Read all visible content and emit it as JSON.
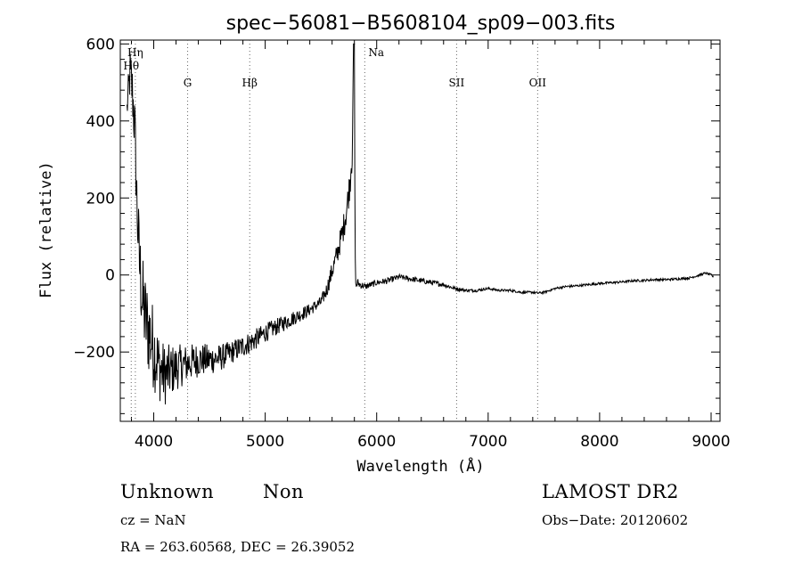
{
  "chart_data": {
    "type": "line",
    "title": "spec−56081−B5608104_sp09−003.fits",
    "xlabel": "Wavelength (Å)",
    "ylabel": "Flux (relative)",
    "xlim": [
      3700,
      9080
    ],
    "ylim": [
      -380,
      610
    ],
    "x_ticks": [
      4000,
      5000,
      6000,
      7000,
      8000,
      9000
    ],
    "x_tick_labels": [
      "4000",
      "5000",
      "6000",
      "7000",
      "8000",
      "9000"
    ],
    "y_ticks": [
      600,
      400,
      200,
      0,
      -200
    ],
    "y_tick_labels": [
      "600",
      "400",
      "200",
      "0",
      "−200"
    ],
    "grid": false,
    "series": [
      {
        "color": "#000000",
        "x": [
          3700,
          3760,
          3790,
          3810,
          3830,
          3850,
          3870,
          3900,
          3930,
          3960,
          4000,
          4050,
          4100,
          4150,
          4200,
          4300,
          4400,
          4500,
          4600,
          4700,
          4800,
          4900,
          5000,
          5100,
          5200,
          5300,
          5400,
          5500,
          5550,
          5600,
          5650,
          5700,
          5730,
          5760,
          5780,
          5795,
          5810,
          5830,
          5850,
          5900,
          6000,
          6100,
          6200,
          6300,
          6400,
          6500,
          6600,
          6700,
          6800,
          6900,
          7000,
          7100,
          7200,
          7300,
          7400,
          7450,
          7500,
          7600,
          7700,
          7800,
          7900,
          8000,
          8100,
          8200,
          8300,
          8400,
          8500,
          8600,
          8700,
          8800,
          8900,
          8950,
          9000,
          9020
        ],
        "y": [
          null,
          430,
          530,
          470,
          380,
          180,
          40,
          -70,
          -120,
          -150,
          -190,
          -240,
          -260,
          -250,
          -240,
          -230,
          -220,
          -220,
          -215,
          -200,
          -185,
          -170,
          -150,
          -135,
          -120,
          -105,
          -90,
          -70,
          -40,
          10,
          60,
          120,
          170,
          240,
          330,
          600,
          -30,
          -20,
          -25,
          -30,
          -20,
          -15,
          -5,
          -10,
          -15,
          -20,
          -25,
          -35,
          -40,
          -40,
          -35,
          -40,
          -40,
          -45,
          -45,
          -47,
          -45,
          -35,
          -30,
          -28,
          -25,
          -22,
          -20,
          -18,
          -15,
          -14,
          -12,
          -12,
          -10,
          -8,
          0,
          5,
          0,
          -5
        ],
        "noise": [
          0,
          40,
          70,
          80,
          90,
          100,
          110,
          120,
          120,
          120,
          110,
          90,
          80,
          70,
          60,
          50,
          45,
          40,
          35,
          30,
          30,
          28,
          25,
          22,
          20,
          18,
          16,
          15,
          20,
          25,
          30,
          35,
          40,
          40,
          60,
          0,
          15,
          12,
          10,
          8,
          8,
          8,
          7,
          7,
          7,
          7,
          6,
          5,
          4,
          4,
          3,
          3,
          3,
          3,
          3,
          3,
          3,
          3,
          3,
          3,
          3,
          3,
          3,
          3,
          3,
          3,
          3,
          3,
          3,
          3,
          3,
          3,
          3,
          3
        ]
      }
    ],
    "annotations": [
      {
        "label": "Hη",
        "x": 3835
      },
      {
        "label": "Hθ",
        "x": 3798
      },
      {
        "label": "G",
        "x": 4304
      },
      {
        "label": "Hβ",
        "x": 4861
      },
      {
        "label": "Na",
        "x": 5893
      },
      {
        "label": "SII",
        "x": 6717
      },
      {
        "label": "OII",
        "x": 7444
      }
    ]
  },
  "info": {
    "class_label": "Unknown",
    "subclass_label": "Non",
    "survey": "LAMOST DR2",
    "cz": "cz = NaN",
    "obs_date": "Obs−Date: 20120602",
    "coords": "RA = 263.60568, DEC =  26.39052"
  }
}
